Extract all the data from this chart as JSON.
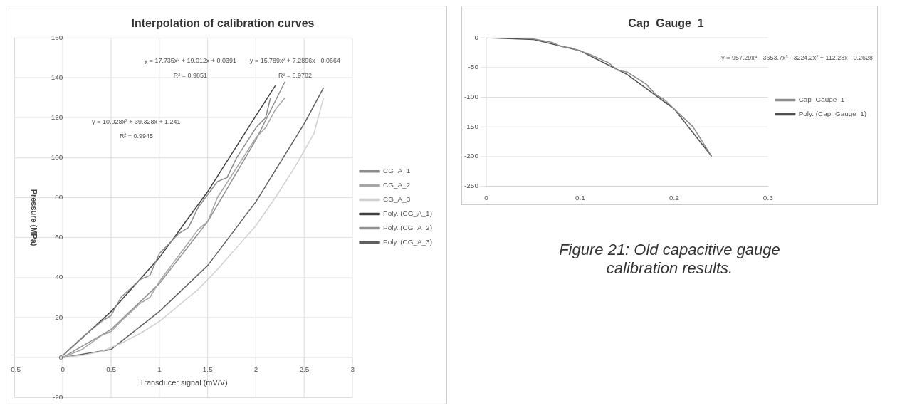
{
  "chart_data": [
    {
      "type": "line",
      "title": "Interpolation of calibration curves",
      "xlabel": "Transducer signal (mV/V)",
      "ylabel": "Pressure (MPa)",
      "xlim": [
        -0.5,
        3
      ],
      "xticks": [
        -0.5,
        0,
        0.5,
        1,
        1.5,
        2,
        2.5,
        3
      ],
      "ylim": [
        -20,
        160
      ],
      "yticks": [
        -20,
        0,
        20,
        40,
        60,
        80,
        100,
        120,
        140,
        160
      ],
      "grid": true,
      "legend": "right",
      "marker": "none",
      "line_style": "solid",
      "annotations": [
        "y = 17.735x² + 19.012x + 0.0391",
        "R² = 0.9851",
        "y = 15.789x² + 7.2896x - 0.0664",
        "R² = 0.9782",
        "y = 10.028x² + 39.328x + 1.241",
        "R² = 0.9945"
      ],
      "series": [
        {
          "name": "CG_A_1",
          "color": "#8c8c8c",
          "x": [
            0,
            0.2,
            0.4,
            0.5,
            0.6,
            0.8,
            0.9,
            1.0,
            1.2,
            1.3,
            1.4,
            1.6,
            1.7,
            1.8,
            2.0,
            2.1,
            2.15
          ],
          "values": [
            1,
            10,
            18,
            21,
            30,
            39,
            41,
            52,
            62,
            65,
            75,
            88,
            90,
            100,
            115,
            120,
            130
          ]
        },
        {
          "name": "CG_A_2",
          "color": "#a6a6a6",
          "x": [
            0,
            0.2,
            0.4,
            0.5,
            0.6,
            0.8,
            0.9,
            1.0,
            1.2,
            1.4,
            1.5,
            1.6,
            1.8,
            2.0,
            2.1,
            2.2,
            2.3
          ],
          "values": [
            0,
            4,
            11,
            13,
            18,
            27,
            30,
            38,
            51,
            64,
            68,
            80,
            95,
            110,
            115,
            124,
            130
          ]
        },
        {
          "name": "CG_A_3",
          "color": "#d0d0d0",
          "x": [
            0,
            0.2,
            0.4,
            0.6,
            0.8,
            1.0,
            1.2,
            1.4,
            1.6,
            1.8,
            2.0,
            2.2,
            2.4,
            2.6,
            2.7
          ],
          "values": [
            0,
            1,
            3,
            7,
            12,
            18,
            26,
            34,
            44,
            55,
            66,
            80,
            95,
            112,
            130
          ]
        },
        {
          "name": "Poly. (CG_A_1)",
          "color": "#404040",
          "x": [
            0,
            0.5,
            1,
            1.5,
            2,
            2.2
          ],
          "values": [
            1,
            23,
            50,
            83,
            121,
            136
          ]
        },
        {
          "name": "Poly. (CG_A_2)",
          "color": "#909090",
          "x": [
            0,
            0.5,
            1,
            1.5,
            2,
            2.3
          ],
          "values": [
            0,
            14,
            37,
            68,
            109,
            138
          ]
        },
        {
          "name": "Poly. (CG_A_3)",
          "color": "#606060",
          "x": [
            0,
            0.5,
            1,
            1.5,
            2,
            2.5,
            2.7
          ],
          "values": [
            0,
            4,
            23,
            46,
            78,
            117,
            135
          ]
        }
      ]
    },
    {
      "type": "line",
      "title": "Cap_Gauge_1",
      "xlim": [
        0,
        0.3
      ],
      "xticks": [
        0,
        0.1,
        0.2,
        0.3
      ],
      "ylim": [
        -250,
        0
      ],
      "yticks": [
        -250,
        -200,
        -150,
        -100,
        -50,
        0
      ],
      "grid": "y",
      "legend": "right",
      "marker": "none",
      "line_style": "solid",
      "annotations": [
        "y = 957.29x⁴ - 3653.7x³ - 3224.2x² + 112.28x - 0.2628",
        "Figure 21: Old capacitive gauge calibration results."
      ],
      "series": [
        {
          "name": "Cap_Gauge_1",
          "color": "#8c8c8c",
          "x": [
            0,
            0.03,
            0.05,
            0.07,
            0.08,
            0.09,
            0.11,
            0.13,
            0.14,
            0.15,
            0.17,
            0.18,
            0.19,
            0.21,
            0.22,
            0.23,
            0.24
          ],
          "values": [
            0,
            0,
            -2,
            -8,
            -15,
            -17,
            -28,
            -42,
            -55,
            -58,
            -78,
            -95,
            -105,
            -135,
            -150,
            -175,
            -200
          ]
        },
        {
          "name": "Poly. (Cap_Gauge_1)",
          "color": "#505050",
          "x": [
            0,
            0.05,
            0.1,
            0.15,
            0.2,
            0.24
          ],
          "values": [
            0,
            -3,
            -22,
            -62,
            -120,
            -200
          ]
        }
      ]
    }
  ]
}
